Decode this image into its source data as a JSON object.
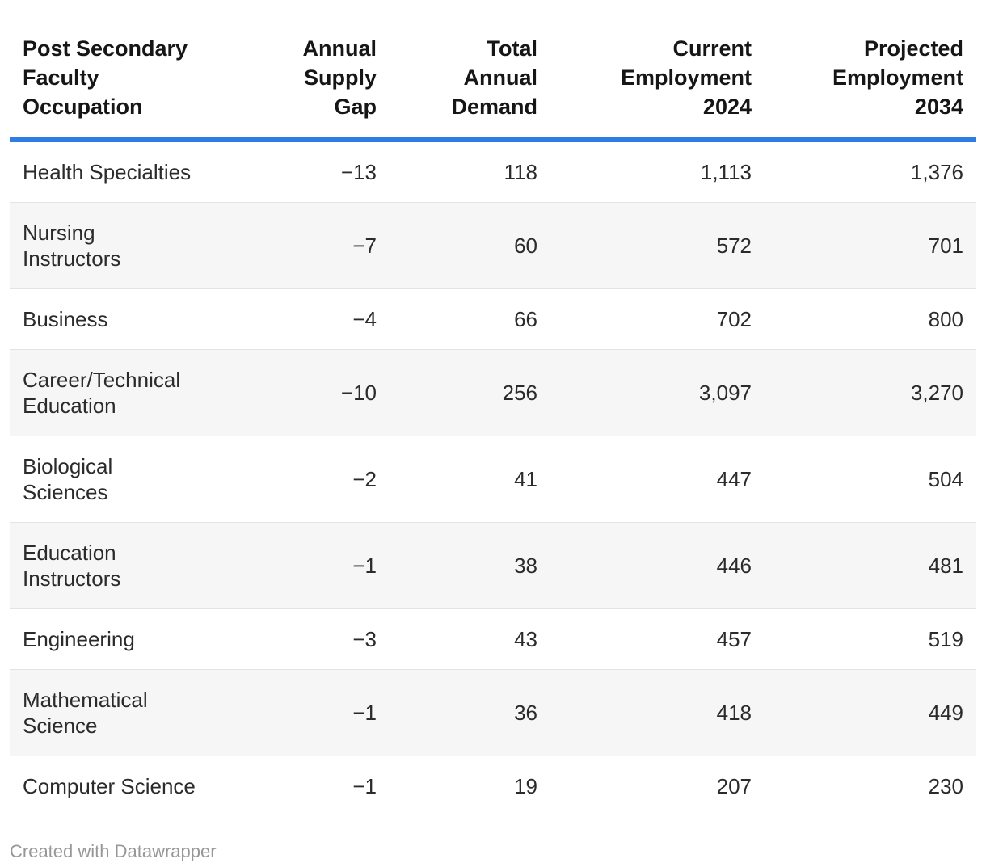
{
  "accent_color": "#2e7de5",
  "alt_row_color": "#f6f6f6",
  "chart_data": {
    "type": "table",
    "columns": [
      "Post Secondary Faculty Occupation",
      "Annual Supply Gap",
      "Total Annual Demand",
      "Current Employment 2024",
      "Projected Employment 2034"
    ],
    "rows": [
      [
        "Health Specialties",
        -13,
        118,
        1113,
        1376
      ],
      [
        "Nursing Instructors",
        -7,
        60,
        572,
        701
      ],
      [
        "Business",
        -4,
        66,
        702,
        800
      ],
      [
        "Career/Technical Education",
        -10,
        256,
        3097,
        3270
      ],
      [
        "Biological Sciences",
        -2,
        41,
        447,
        504
      ],
      [
        "Education Instructors",
        -1,
        38,
        446,
        481
      ],
      [
        "Engineering",
        -3,
        43,
        457,
        519
      ],
      [
        "Mathematical Science",
        -1,
        36,
        418,
        449
      ],
      [
        "Computer Science",
        -1,
        19,
        207,
        230
      ]
    ]
  },
  "table": {
    "headers": [
      {
        "label": "Post Secondary\nFaculty\nOccupation",
        "align": "left"
      },
      {
        "label": "Annual\nSupply\nGap",
        "align": "right"
      },
      {
        "label": "Total\nAnnual\nDemand",
        "align": "right"
      },
      {
        "label": "Current\nEmployment\n2024",
        "align": "right"
      },
      {
        "label": "Projected\nEmployment\n2034",
        "align": "right"
      }
    ],
    "display_rows": [
      [
        "Health Specialties",
        "−13",
        "118",
        "1,113",
        "1,376"
      ],
      [
        "Nursing Instructors",
        "−7",
        "60",
        "572",
        "701"
      ],
      [
        "Business",
        "−4",
        "66",
        "702",
        "800"
      ],
      [
        "Career/Technical\nEducation",
        "−10",
        "256",
        "3,097",
        "3,270"
      ],
      [
        "Biological Sciences",
        "−2",
        "41",
        "447",
        "504"
      ],
      [
        "Education\nInstructors",
        "−1",
        "38",
        "446",
        "481"
      ],
      [
        "Engineering",
        "−3",
        "43",
        "457",
        "519"
      ],
      [
        "Mathematical\nScience",
        "−1",
        "36",
        "418",
        "449"
      ],
      [
        "Computer Science",
        "−1",
        "19",
        "207",
        "230"
      ]
    ]
  },
  "footer": {
    "credit": "Created with Datawrapper"
  }
}
